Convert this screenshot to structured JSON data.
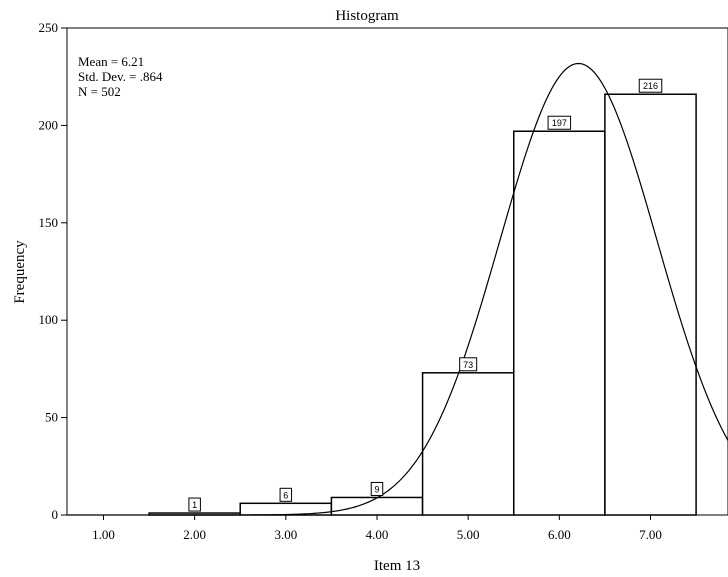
{
  "chart_data": {
    "type": "bar",
    "title": "Histogram",
    "xlabel": "Item 13",
    "ylabel": "Frequency",
    "stats": [
      "Mean = 6.21",
      "Std. Dev. = .864",
      "N = 502"
    ],
    "mean": 6.21,
    "std_dev": 0.864,
    "n": 502,
    "bins": [
      {
        "from": 1.5,
        "to": 2.5,
        "value": 1,
        "label": "1"
      },
      {
        "from": 2.5,
        "to": 3.5,
        "value": 6,
        "label": "6"
      },
      {
        "from": 3.5,
        "to": 4.5,
        "value": 9,
        "label": "9"
      },
      {
        "from": 4.5,
        "to": 5.5,
        "value": 73,
        "label": "73"
      },
      {
        "from": 5.5,
        "to": 6.5,
        "value": 197,
        "label": "197"
      },
      {
        "from": 6.5,
        "to": 7.5,
        "value": 216,
        "label": "216"
      }
    ],
    "xlim": [
      0.6,
      7.85
    ],
    "ylim": [
      0,
      250
    ],
    "x_ticks": [
      {
        "value": 1,
        "label": "1.00"
      },
      {
        "value": 2,
        "label": "2.00"
      },
      {
        "value": 3,
        "label": "3.00"
      },
      {
        "value": 4,
        "label": "4.00"
      },
      {
        "value": 5,
        "label": "5.00"
      },
      {
        "value": 6,
        "label": "6.00"
      },
      {
        "value": 7,
        "label": "7.00"
      }
    ],
    "y_ticks": [
      {
        "value": 0,
        "label": "0"
      },
      {
        "value": 50,
        "label": "50"
      },
      {
        "value": 100,
        "label": "100"
      },
      {
        "value": 150,
        "label": "150"
      },
      {
        "value": 200,
        "label": "200"
      },
      {
        "value": 250,
        "label": "250"
      }
    ],
    "normal_curve": true,
    "grid": false,
    "legend": "none"
  }
}
